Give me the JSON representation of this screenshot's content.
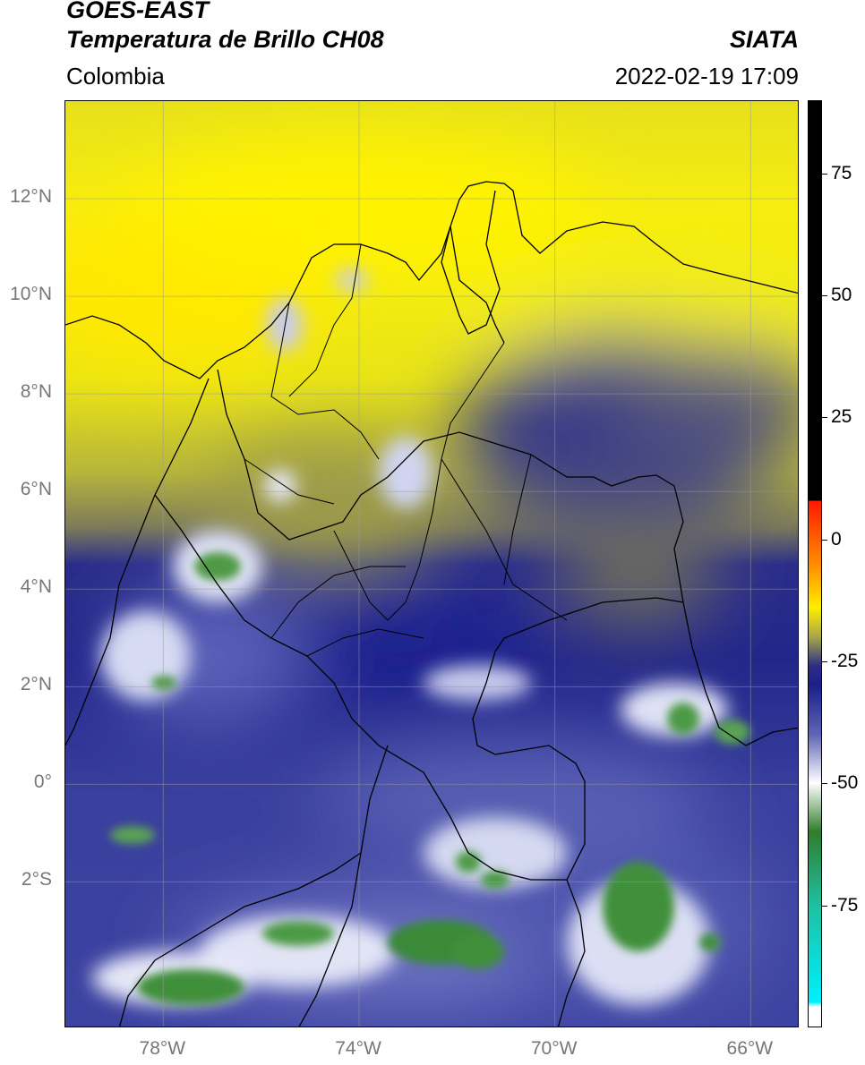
{
  "header": {
    "satellite": "GOES-EAST",
    "product": "Temperatura de Brillo CH08",
    "agency": "SIATA",
    "region": "Colombia",
    "datetime": "2022-02-19 17:09"
  },
  "map": {
    "lon_range": [
      -80,
      -65
    ],
    "lat_range": [
      -5,
      14
    ],
    "lat_ticks": [
      "12°N",
      "10°N",
      "8°N",
      "6°N",
      "4°N",
      "2°N",
      "0°",
      "2°S"
    ],
    "lat_values": [
      12,
      10,
      8,
      6,
      4,
      2,
      0,
      -2
    ],
    "lon_ticks": [
      "78°W",
      "74°W",
      "70°W",
      "66°W"
    ],
    "lon_values": [
      -78,
      -74,
      -70,
      -66
    ],
    "grid": true,
    "background_palette": [
      "#f7ee10",
      "#b6b536",
      "#2a2f8c",
      "#d8dcf0",
      "#3f8f3a"
    ]
  },
  "colorbar": {
    "ticks": [
      "75",
      "50",
      "25",
      "0",
      "-25",
      "-50",
      "-75"
    ],
    "tick_values": [
      75,
      50,
      25,
      0,
      -25,
      -50,
      -75
    ],
    "range": [
      -100,
      90
    ],
    "stops": [
      {
        "v": 90,
        "c": "#000000"
      },
      {
        "v": 8,
        "c": "#000000"
      },
      {
        "v": 7.9,
        "c": "#ff1a00"
      },
      {
        "v": -6,
        "c": "#ff9500"
      },
      {
        "v": -14,
        "c": "#ffee00"
      },
      {
        "v": -20,
        "c": "#a8a648"
      },
      {
        "v": -26,
        "c": "#2d2d86"
      },
      {
        "v": -30,
        "c": "#1c1f8a"
      },
      {
        "v": -40,
        "c": "#5e64b4"
      },
      {
        "v": -50,
        "c": "#ffffff"
      },
      {
        "v": -60,
        "c": "#2f7d2c"
      },
      {
        "v": -75,
        "c": "#1fc0a0"
      },
      {
        "v": -95,
        "c": "#00f0ff"
      },
      {
        "v": -96,
        "c": "#ffffff"
      },
      {
        "v": -100,
        "c": "#ffffff"
      }
    ]
  }
}
